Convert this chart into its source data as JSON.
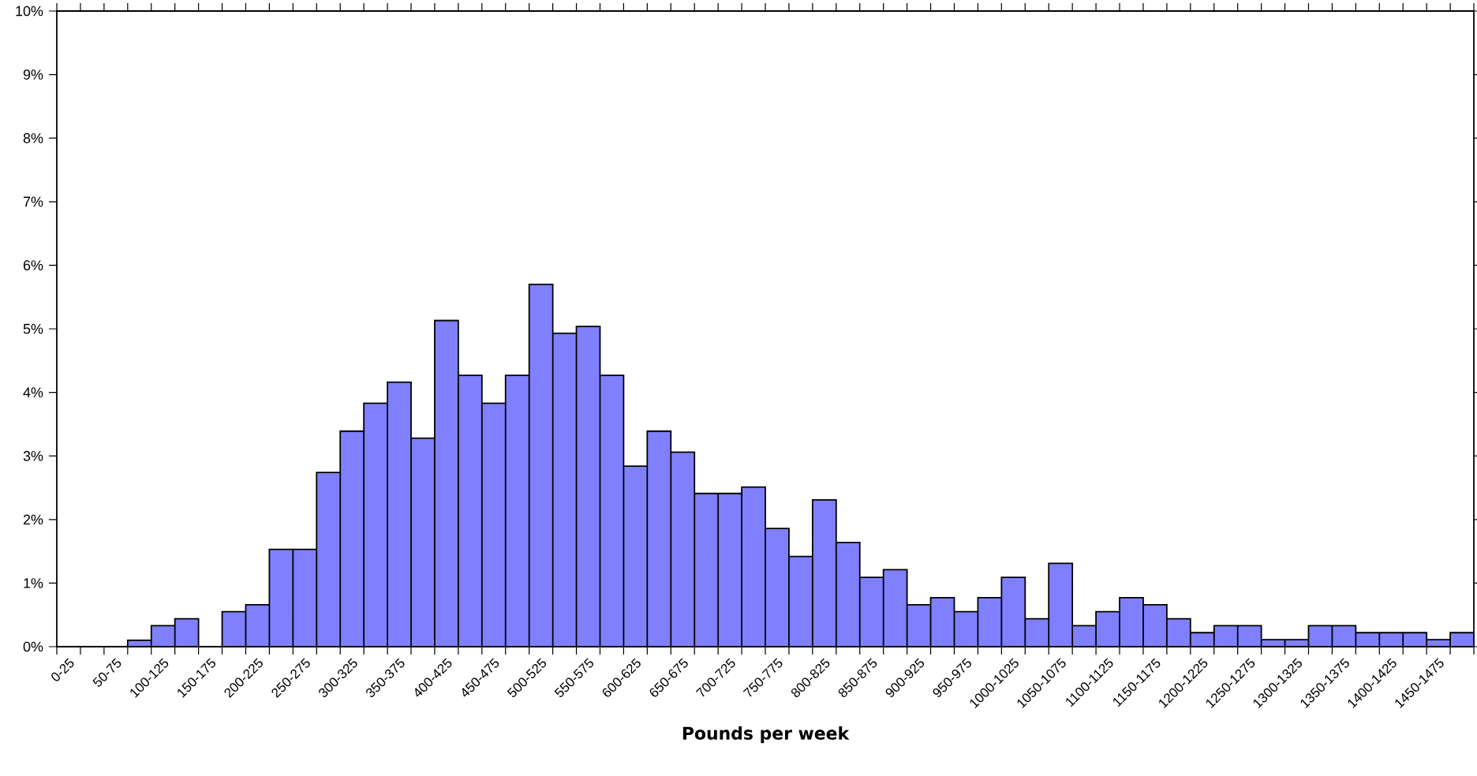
{
  "chart_data": {
    "type": "bar",
    "xlabel": "Pounds per week",
    "categories": [
      "0-25",
      null,
      "50-75",
      null,
      "100-125",
      null,
      "150-175",
      null,
      "200-225",
      null,
      "250-275",
      null,
      "300-325",
      null,
      "350-375",
      null,
      "400-425",
      null,
      "450-475",
      null,
      "500-525",
      null,
      "550-575",
      null,
      "600-625",
      null,
      "650-675",
      null,
      "700-725",
      null,
      "750-775",
      null,
      "800-825",
      null,
      "850-875",
      null,
      "900-925",
      null,
      "950-975",
      null,
      "1000-1025",
      null,
      "1050-1075",
      null,
      "1100-1125",
      null,
      "1150-1175",
      null,
      "1200-1225",
      null,
      "1250-1275",
      null,
      "1300-1325",
      null,
      "1350-1375",
      null,
      "1400-1425",
      null,
      "1450-1475",
      null
    ],
    "values": [
      0,
      0,
      0,
      0.1,
      0.33,
      0.44,
      0,
      0.55,
      0.66,
      1.53,
      1.53,
      2.74,
      3.39,
      3.83,
      4.16,
      3.28,
      5.13,
      4.27,
      3.83,
      4.27,
      5.7,
      4.93,
      5.04,
      4.27,
      2.84,
      3.39,
      3.06,
      2.41,
      2.41,
      2.51,
      1.86,
      1.42,
      2.31,
      1.64,
      1.09,
      1.21,
      0.66,
      0.77,
      0.55,
      0.77,
      1.09,
      0.44,
      1.31,
      0.33,
      0.55,
      0.77,
      0.66,
      0.44,
      0.22,
      0.33,
      0.33,
      0.11,
      0.11,
      0.33,
      0.33,
      0.22,
      0.22,
      0.22,
      0.11,
      0.22
    ],
    "color": "#8080ff",
    "ylim": [
      0,
      10
    ],
    "yticks": [
      {
        "value": 0,
        "label": "0%"
      },
      {
        "value": 1,
        "label": "1%"
      },
      {
        "value": 2,
        "label": "2%"
      },
      {
        "value": 3,
        "label": "3%"
      },
      {
        "value": 4,
        "label": "4%"
      },
      {
        "value": 5,
        "label": "5%"
      },
      {
        "value": 6,
        "label": "6%"
      },
      {
        "value": 7,
        "label": "7%"
      },
      {
        "value": 8,
        "label": "8%"
      },
      {
        "value": 9,
        "label": "9%"
      },
      {
        "value": 10,
        "label": "10%"
      }
    ]
  }
}
